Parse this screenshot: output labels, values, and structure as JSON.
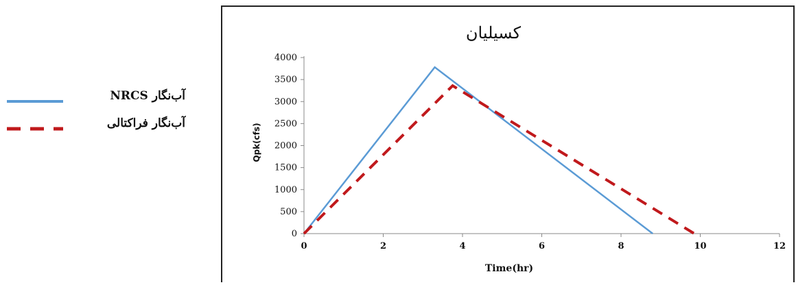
{
  "legend": {
    "items": [
      {
        "label": "آب‌نگار NRCS",
        "color": "#5b9bd5",
        "style": "solid"
      },
      {
        "label": "آب‌نگار فراکتالی",
        "color": "#c0191c",
        "style": "dashed"
      }
    ]
  },
  "chart_data": {
    "type": "line",
    "title": "کسیلیان",
    "xlabel": "Time(hr)",
    "ylabel": "Qpk(cfs)",
    "xlim": [
      0,
      12
    ],
    "ylim": [
      0,
      4000
    ],
    "xticks": [
      "0",
      "2",
      "4",
      "6",
      "8",
      "10",
      "12"
    ],
    "yticks": [
      "0",
      "500",
      "1000",
      "1500",
      "2000",
      "2500",
      "3000",
      "3500",
      "4000"
    ],
    "grid": false,
    "legend_position": "left, outside plot",
    "series": [
      {
        "name": "آب‌نگار NRCS",
        "color": "#5b9bd5",
        "style": "solid",
        "x": [
          0,
          3.3,
          8.8
        ],
        "y": [
          0,
          3780,
          0
        ]
      },
      {
        "name": "آب‌نگار فراکتالی",
        "color": "#c0191c",
        "style": "dashed",
        "x": [
          0,
          3.75,
          9.85
        ],
        "y": [
          0,
          3360,
          0
        ]
      }
    ]
  }
}
